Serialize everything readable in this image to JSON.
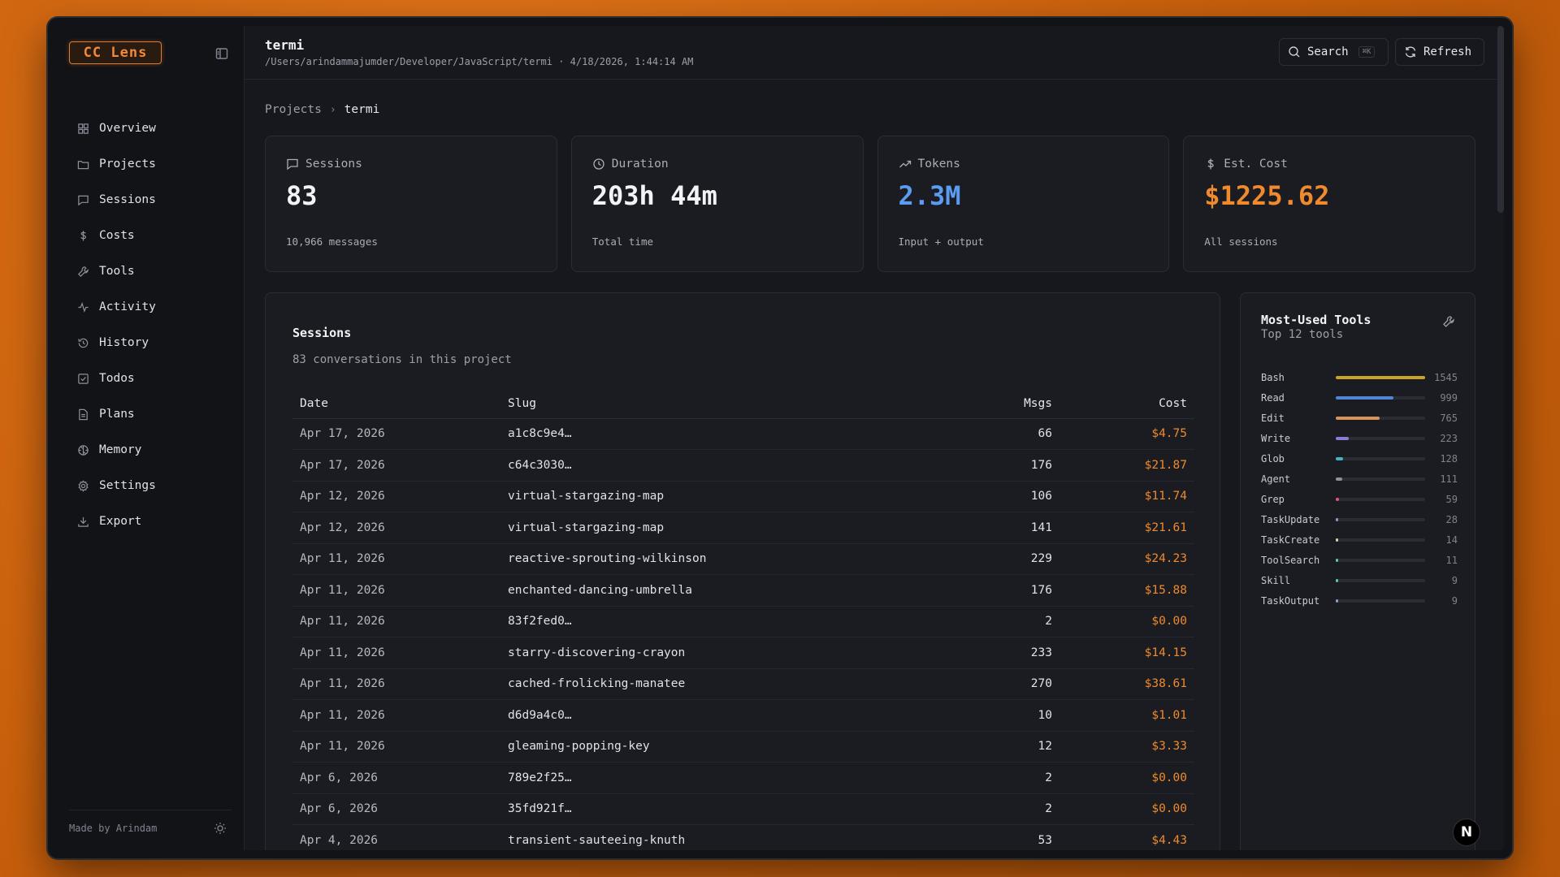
{
  "app": {
    "logo": "CC Lens"
  },
  "sidebar": {
    "items": [
      {
        "label": "Overview",
        "icon": "grid-icon"
      },
      {
        "label": "Projects",
        "icon": "folder-icon"
      },
      {
        "label": "Sessions",
        "icon": "chat-icon"
      },
      {
        "label": "Costs",
        "icon": "dollar-icon"
      },
      {
        "label": "Tools",
        "icon": "wrench-icon"
      },
      {
        "label": "Activity",
        "icon": "activity-icon"
      },
      {
        "label": "History",
        "icon": "history-icon"
      },
      {
        "label": "Todos",
        "icon": "checkbox-icon"
      },
      {
        "label": "Plans",
        "icon": "document-icon"
      },
      {
        "label": "Memory",
        "icon": "brain-icon"
      },
      {
        "label": "Settings",
        "icon": "gear-icon"
      },
      {
        "label": "Export",
        "icon": "download-icon"
      }
    ],
    "footer": "Made by Arindam"
  },
  "header": {
    "title": "termi",
    "path": "/Users/arindammajumder/Developer/JavaScript/termi · 4/18/2026, 1:44:14 AM",
    "search_label": "Search",
    "search_kbd": "⌘K",
    "refresh_label": "Refresh"
  },
  "breadcrumb": {
    "parent": "Projects",
    "sep": "›",
    "current": "termi"
  },
  "cards": [
    {
      "label": "Sessions",
      "value": "83",
      "sub": "10,966 messages",
      "color": "#f1f3f6"
    },
    {
      "label": "Duration",
      "value": "203h 44m",
      "sub": "Total time",
      "color": "#f1f3f6"
    },
    {
      "label": "Tokens",
      "value": "2.3M",
      "sub": "Input + output",
      "color": "#5b9cf2"
    },
    {
      "label": "Est. Cost",
      "value": "$1225.62",
      "sub": "All sessions",
      "color": "#f08a2c"
    }
  ],
  "sessions": {
    "title": "Sessions",
    "subtitle": "83 conversations in this project",
    "columns": [
      "Date",
      "Slug",
      "Msgs",
      "Cost"
    ],
    "rows": [
      {
        "date": "Apr 17, 2026",
        "slug": "a1c8c9e4…",
        "msgs": "66",
        "cost": "$4.75"
      },
      {
        "date": "Apr 17, 2026",
        "slug": "c64c3030…",
        "msgs": "176",
        "cost": "$21.87"
      },
      {
        "date": "Apr 12, 2026",
        "slug": "virtual-stargazing-map",
        "msgs": "106",
        "cost": "$11.74"
      },
      {
        "date": "Apr 12, 2026",
        "slug": "virtual-stargazing-map",
        "msgs": "141",
        "cost": "$21.61"
      },
      {
        "date": "Apr 11, 2026",
        "slug": "reactive-sprouting-wilkinson",
        "msgs": "229",
        "cost": "$24.23"
      },
      {
        "date": "Apr 11, 2026",
        "slug": "enchanted-dancing-umbrella",
        "msgs": "176",
        "cost": "$15.88"
      },
      {
        "date": "Apr 11, 2026",
        "slug": "83f2fed0…",
        "msgs": "2",
        "cost": "$0.00"
      },
      {
        "date": "Apr 11, 2026",
        "slug": "starry-discovering-crayon",
        "msgs": "233",
        "cost": "$14.15"
      },
      {
        "date": "Apr 11, 2026",
        "slug": "cached-frolicking-manatee",
        "msgs": "270",
        "cost": "$38.61"
      },
      {
        "date": "Apr 11, 2026",
        "slug": "d6d9a4c0…",
        "msgs": "10",
        "cost": "$1.01"
      },
      {
        "date": "Apr 11, 2026",
        "slug": "gleaming-popping-key",
        "msgs": "12",
        "cost": "$3.33"
      },
      {
        "date": "Apr 6, 2026",
        "slug": "789e2f25…",
        "msgs": "2",
        "cost": "$0.00"
      },
      {
        "date": "Apr 6, 2026",
        "slug": "35fd921f…",
        "msgs": "2",
        "cost": "$0.00"
      },
      {
        "date": "Apr 4, 2026",
        "slug": "transient-sauteeing-knuth",
        "msgs": "53",
        "cost": "$4.43"
      }
    ]
  },
  "tools": {
    "title": "Most-Used Tools",
    "subtitle": "Top 12 tools",
    "items": [
      {
        "name": "Bash",
        "count": "1545",
        "fraction": 1.0,
        "color": "#c9a227"
      },
      {
        "name": "Read",
        "count": "999",
        "fraction": 0.647,
        "color": "#4f86d9"
      },
      {
        "name": "Edit",
        "count": "765",
        "fraction": 0.495,
        "color": "#d9925a"
      },
      {
        "name": "Write",
        "count": "223",
        "fraction": 0.144,
        "color": "#8a7bd6"
      },
      {
        "name": "Glob",
        "count": "128",
        "fraction": 0.083,
        "color": "#3fb6c4"
      },
      {
        "name": "Agent",
        "count": "111",
        "fraction": 0.072,
        "color": "#8c919b"
      },
      {
        "name": "Grep",
        "count": "59",
        "fraction": 0.038,
        "color": "#e0547a"
      },
      {
        "name": "TaskUpdate",
        "count": "28",
        "fraction": 0.018,
        "color": "#8a9dc4"
      },
      {
        "name": "TaskCreate",
        "count": "14",
        "fraction": 0.009,
        "color": "#d9d0b0"
      },
      {
        "name": "ToolSearch",
        "count": "11",
        "fraction": 0.007,
        "color": "#62c9a8"
      },
      {
        "name": "Skill",
        "count": "9",
        "fraction": 0.006,
        "color": "#62c9a8"
      },
      {
        "name": "TaskOutput",
        "count": "9",
        "fraction": 0.006,
        "color": "#8a9dc4"
      }
    ]
  },
  "badge": "N"
}
